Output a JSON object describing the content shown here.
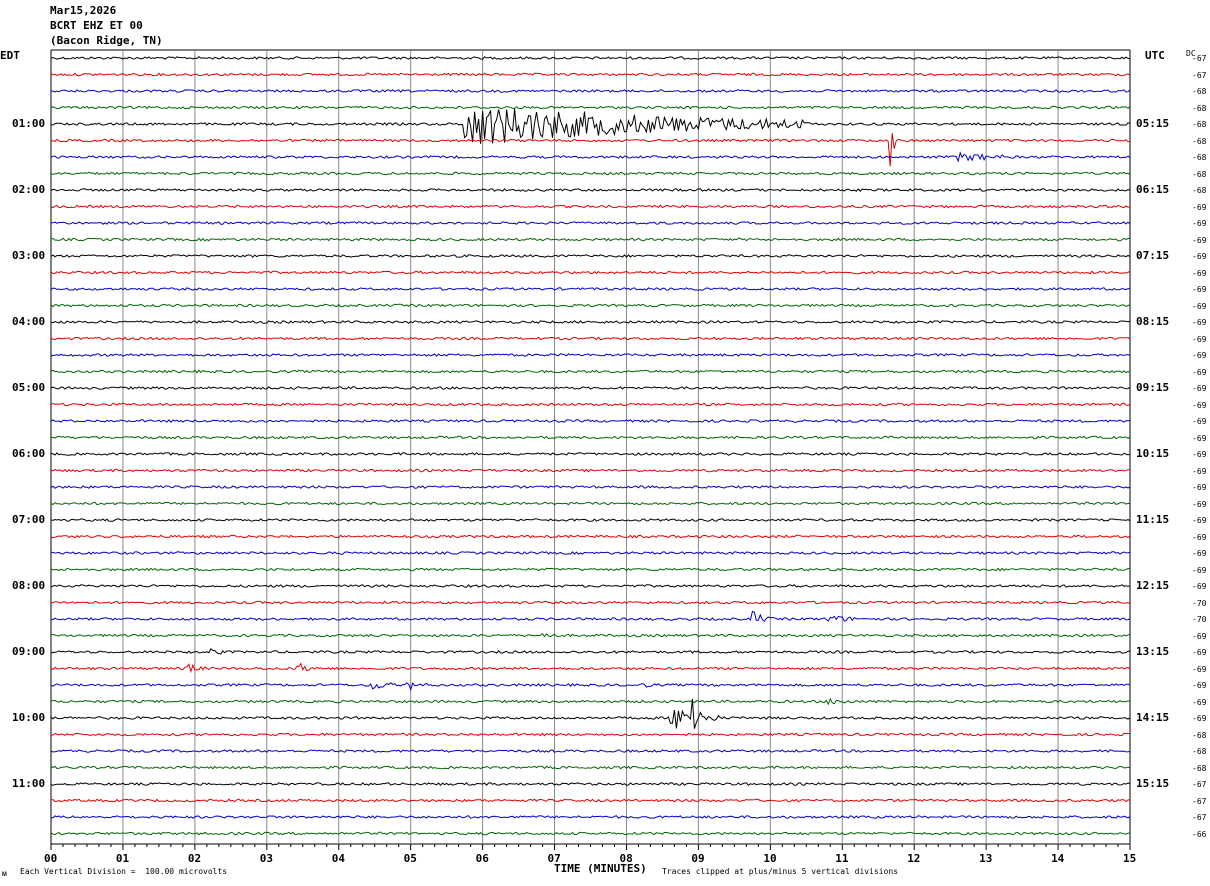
{
  "header": {
    "date": "Mar15,2026",
    "station": "BCRT EHZ ET 00",
    "location": "(Bacon Ridge, TN)"
  },
  "left_tz": "EDT",
  "right_tz": "UTC",
  "dc_label": "DC",
  "footer": {
    "scale_note": "Each Vertical Division =  100.00 microvolts",
    "clip_note": "Traces clipped at plus/minus 5 vertical divisions",
    "corner_mark": "ᴍ"
  },
  "colors": {
    "cycle": [
      "#000000",
      "#e00000",
      "#0000cc",
      "#006600"
    ],
    "grid": "#888888"
  },
  "chart_data": {
    "type": "line",
    "xlabel": "TIME (MINUTES)",
    "xlim": [
      0,
      15
    ],
    "x_ticks": [
      "00",
      "01",
      "02",
      "03",
      "04",
      "05",
      "06",
      "07",
      "08",
      "09",
      "10",
      "11",
      "12",
      "13",
      "14",
      "15"
    ],
    "rows_per_hour": 4,
    "row_count": 48,
    "left_hour_labels": [
      "01:00",
      "02:00",
      "03:00",
      "04:00",
      "05:00",
      "06:00",
      "07:00",
      "08:00",
      "09:00",
      "10:00",
      "11:00"
    ],
    "right_hour_labels": [
      "05:15",
      "06:15",
      "07:15",
      "08:15",
      "09:15",
      "10:15",
      "11:15",
      "12:15",
      "13:15",
      "14:15",
      "15:15"
    ],
    "hour_label_rows": [
      4,
      8,
      12,
      16,
      20,
      24,
      28,
      32,
      36,
      40,
      44
    ],
    "dc_offsets": [
      -67,
      -67,
      -68,
      -68,
      -68,
      -68,
      -68,
      -68,
      -68,
      -69,
      -69,
      -69,
      -69,
      -69,
      -69,
      -69,
      -69,
      -69,
      -69,
      -69,
      -69,
      -69,
      -69,
      -69,
      -69,
      -69,
      -69,
      -69,
      -69,
      -69,
      -69,
      -69,
      -69,
      -70,
      -70,
      -69,
      -69,
      -69,
      -69,
      -69,
      -69,
      -68,
      -68,
      -68,
      -67,
      -67,
      -67,
      -66
    ],
    "events": [
      {
        "row": 4,
        "start_min": 5.75,
        "peak_amp": 22,
        "decay_min": 2.5,
        "duration_min": 4.8
      },
      {
        "row": 5,
        "start_min": 11.65,
        "peak_amp": 48,
        "decay_min": 0.04,
        "duration_min": 0.12
      },
      {
        "row": 6,
        "start_min": 12.55,
        "peak_amp": 4,
        "decay_min": 0.5,
        "duration_min": 0.7
      },
      {
        "row": 34,
        "start_min": 9.75,
        "peak_amp": 12,
        "decay_min": 0.08,
        "duration_min": 0.3
      },
      {
        "row": 34,
        "start_min": 10.8,
        "peak_amp": 4,
        "decay_min": 0.2,
        "duration_min": 0.4
      },
      {
        "row": 35,
        "start_min": 6.8,
        "peak_amp": 4,
        "decay_min": 0.1,
        "duration_min": 0.25
      },
      {
        "row": 36,
        "start_min": 2.2,
        "peak_amp": 4,
        "decay_min": 0.1,
        "duration_min": 0.2
      },
      {
        "row": 37,
        "start_min": 1.85,
        "peak_amp": 8,
        "decay_min": 0.1,
        "duration_min": 0.3
      },
      {
        "row": 37,
        "start_min": 3.4,
        "peak_amp": 6,
        "decay_min": 0.15,
        "duration_min": 0.3
      },
      {
        "row": 38,
        "start_min": 4.45,
        "peak_amp": 6,
        "decay_min": 0.15,
        "duration_min": 0.3
      },
      {
        "row": 38,
        "start_min": 4.9,
        "peak_amp": 10,
        "decay_min": 0.1,
        "duration_min": 0.35
      },
      {
        "row": 38,
        "start_min": 8.2,
        "peak_amp": 2,
        "decay_min": 0.1,
        "duration_min": 0.2
      },
      {
        "row": 39,
        "start_min": 10.8,
        "peak_amp": 3,
        "decay_min": 0.2,
        "duration_min": 0.4
      },
      {
        "row": 40,
        "start_min": 8.6,
        "peak_amp": 14,
        "decay_min": 0.3,
        "duration_min": 0.7
      },
      {
        "row": 40,
        "start_min": 8.9,
        "peak_amp": 50,
        "decay_min": 0.05,
        "duration_min": 0.15
      }
    ]
  }
}
